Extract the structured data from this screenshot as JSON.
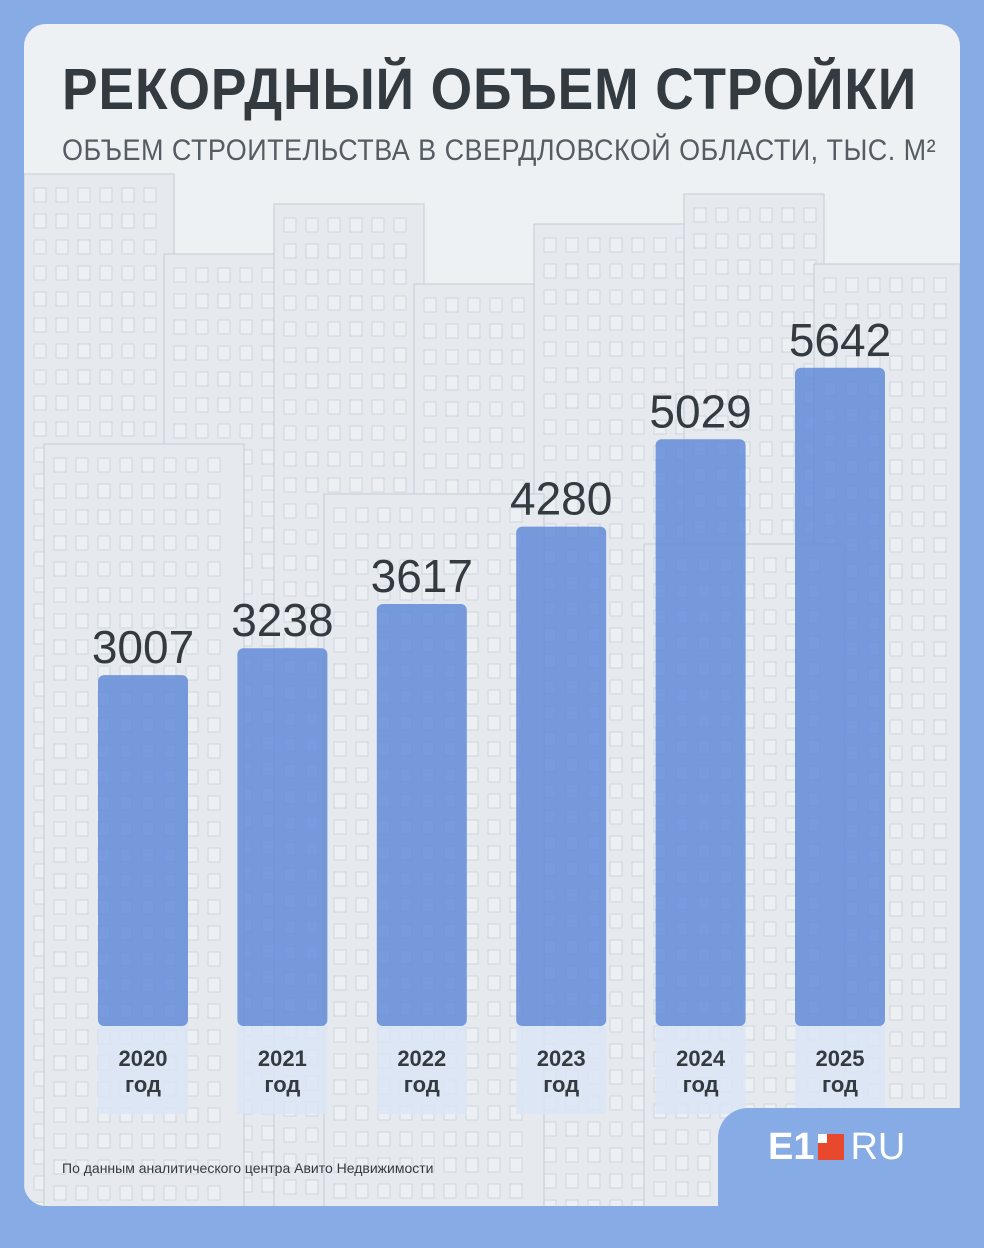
{
  "header": {
    "title": "РЕКОРДНЫЙ ОБЪЕМ СТРОЙКИ",
    "subtitle": "ОБЪЕМ СТРОИТЕЛЬСТВА В СВЕРДЛОВСКОЙ ОБЛАСТИ, ТЫС. М²"
  },
  "chart_data": {
    "type": "bar",
    "title": "РЕКОРДНЫЙ ОБЪЕМ СТРОЙКИ",
    "subtitle": "ОБЪЕМ СТРОИТЕЛЬСТВА В СВЕРДЛОВСКОЙ ОБЛАСТИ, ТЫС. М²",
    "categories": [
      "2020",
      "2021",
      "2022",
      "2023",
      "2024",
      "2025"
    ],
    "category_suffix": "год",
    "values": [
      3007,
      3238,
      3617,
      4280,
      5029,
      5642
    ],
    "ylim": [
      0,
      6000
    ],
    "grid": false,
    "legend": "none",
    "bar_color": "#5d87d8"
  },
  "footer": {
    "source": "По данным аналитического центра Авито Недвижимости",
    "logo_left": "E1",
    "logo_right": "RU"
  },
  "colors": {
    "frame": "#86abe5",
    "bar": "#5d87d8",
    "text_dark": "#333a40",
    "logo_accent": "#e8482b"
  }
}
